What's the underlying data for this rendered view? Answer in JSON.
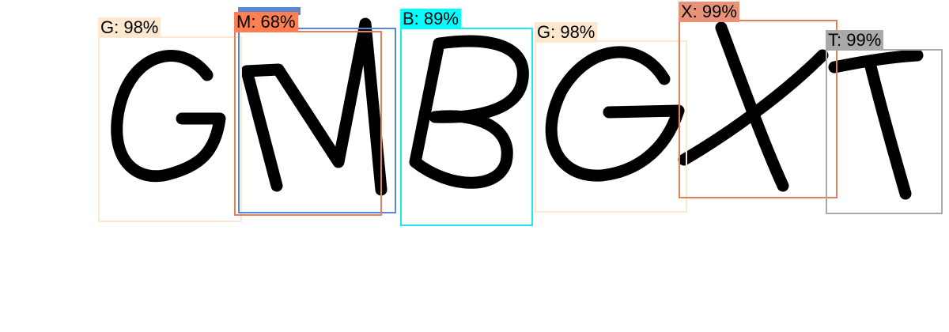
{
  "captcha": {
    "text": "GMBGXT",
    "glyphs": [
      "G",
      "M",
      "B",
      "G",
      "X",
      "T"
    ]
  },
  "detections": [
    {
      "id": "g1",
      "label": "G: 98%",
      "color": "#fde8cf",
      "tag_color": "#fde8cf"
    },
    {
      "id": "m-extra",
      "label": "",
      "color": "#5b86d6",
      "tag_color": "#5b86d6"
    },
    {
      "id": "m",
      "label": "M: 68%",
      "color": "#e0805f",
      "tag_color": "#ff7f50"
    },
    {
      "id": "b",
      "label": "B: 89%",
      "color": "#1ee8ef",
      "tag_color": "#00ffff"
    },
    {
      "id": "g2",
      "label": "G: 98%",
      "color": "#fde8cf",
      "tag_color": "#fde8cf"
    },
    {
      "id": "x",
      "label": "X: 99%",
      "color": "#e0805f",
      "tag_color": "#e8927a"
    },
    {
      "id": "t",
      "label": "T: 99%",
      "color": "#a9a9a9",
      "tag_color": "#a9a9a9"
    }
  ]
}
